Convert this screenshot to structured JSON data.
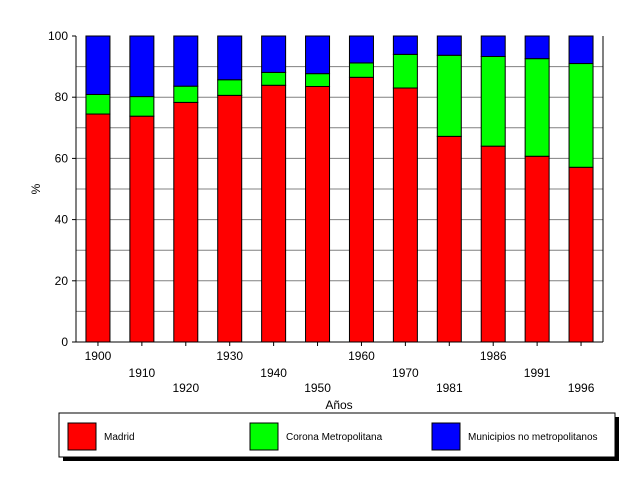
{
  "chart_data": {
    "type": "bar",
    "stacked": true,
    "categories": [
      "1900",
      "1910",
      "1920",
      "1930",
      "1940",
      "1950",
      "1960",
      "1970",
      "1981",
      "1986",
      "1991",
      "1996"
    ],
    "series": [
      {
        "name": "Madrid",
        "color": "#ff0000",
        "values": [
          74.5,
          73.8,
          78.3,
          80.6,
          83.9,
          83.5,
          86.5,
          83.0,
          67.2,
          64.0,
          60.7,
          57.1
        ]
      },
      {
        "name": "Corona Metropolitana",
        "color": "#00ff00",
        "values": [
          6.4,
          6.4,
          5.3,
          5.1,
          4.2,
          4.2,
          4.7,
          11.0,
          26.5,
          29.3,
          31.9,
          33.9
        ]
      },
      {
        "name": "Municipios no metropolitanos",
        "color": "#0000ff",
        "values": [
          19.1,
          19.8,
          16.4,
          14.3,
          11.9,
          12.3,
          8.8,
          6.0,
          6.3,
          6.7,
          7.4,
          9.0
        ]
      }
    ],
    "xlabel": "Años",
    "ylabel": "%",
    "ylim": [
      0,
      100
    ],
    "yticks": [
      "0",
      "20",
      "40",
      "60",
      "80",
      "100"
    ],
    "grid": true,
    "legend_position": "bottom"
  }
}
